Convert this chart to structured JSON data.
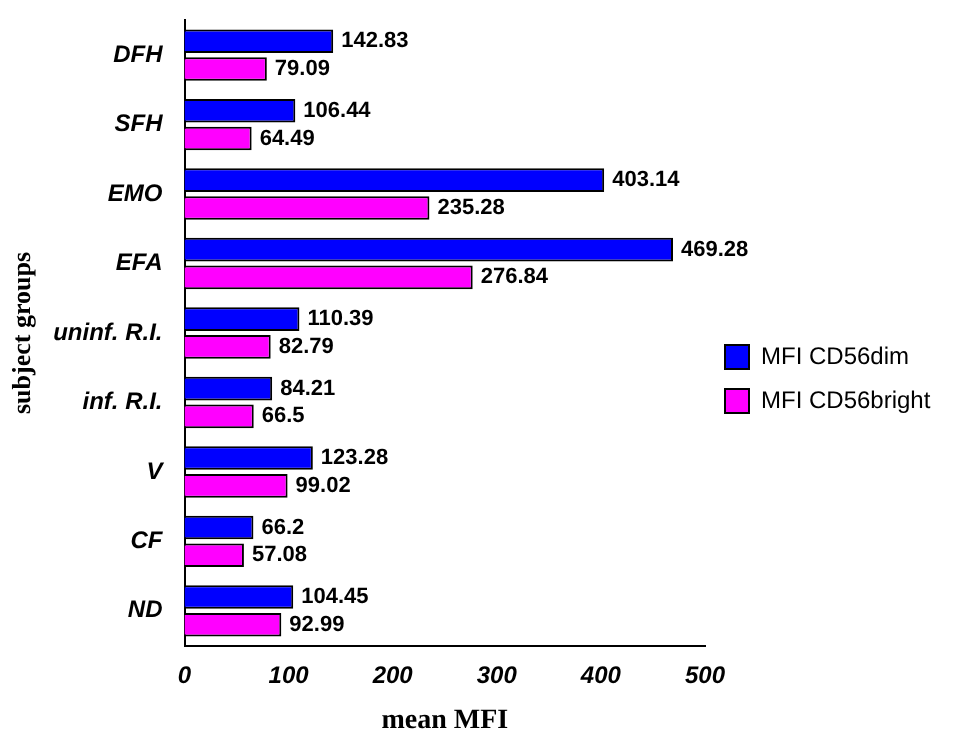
{
  "chart_data": {
    "type": "bar",
    "orientation": "horizontal",
    "xlabel": "mean MFI",
    "ylabel": "subject groups",
    "categories": [
      "DFH",
      "SFH",
      "EMO",
      "EFA",
      "uninf. R.I.",
      "inf. R.I.",
      "V",
      "CF",
      "ND"
    ],
    "series": [
      {
        "name": "MFI CD56dim",
        "color": "#0000ff",
        "values": [
          142.83,
          106.44,
          403.14,
          469.28,
          110.39,
          84.21,
          123.28,
          66.2,
          104.45
        ]
      },
      {
        "name": "MFI CD56bright",
        "color": "#ff00ff",
        "values": [
          79.09,
          64.49,
          235.28,
          276.84,
          82.79,
          66.5,
          99.02,
          57.08,
          92.99
        ]
      }
    ],
    "xlim": [
      0,
      500
    ],
    "xticks": [
      0,
      100,
      200,
      300,
      400,
      500
    ],
    "data_labels": true,
    "legend": "right",
    "grid": false
  }
}
